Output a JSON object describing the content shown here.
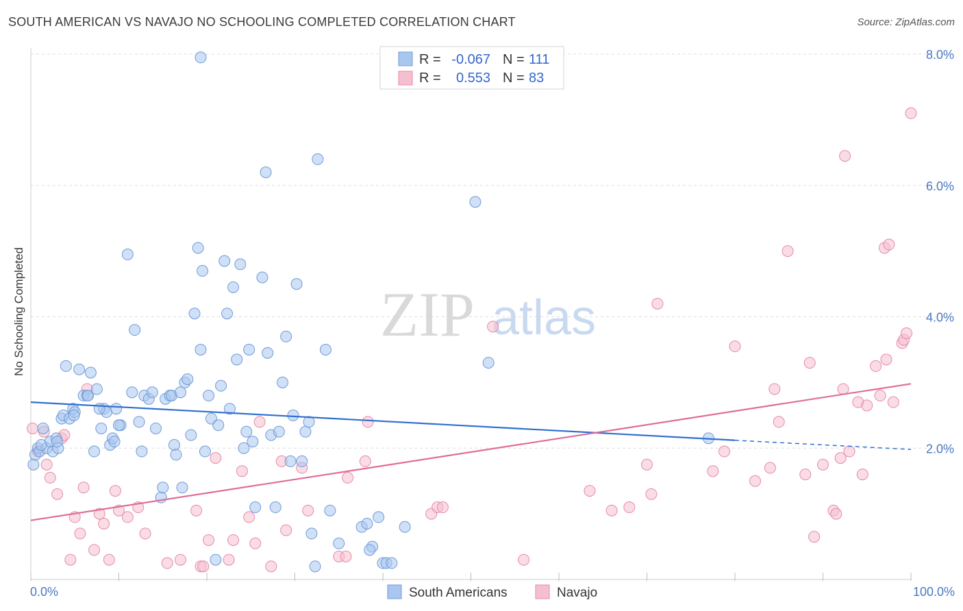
{
  "title": "SOUTH AMERICAN VS NAVAJO NO SCHOOLING COMPLETED CORRELATION CHART",
  "source": "Source: ZipAtlas.com",
  "watermark": {
    "zip": "ZIP",
    "atlas": "atlas"
  },
  "colors": {
    "blue_fill": "#a9c6ef",
    "blue_stroke": "#6f9bd8",
    "blue_line": "#2f6fd0",
    "pink_fill": "#f6bfd0",
    "pink_stroke": "#e58aa8",
    "pink_line": "#e06c98",
    "axis_text": "#4a78c2",
    "grid": "#dddddd"
  },
  "legend": {
    "rows": [
      {
        "r_label": "R =",
        "r_value": "-0.067",
        "n_label": "N =",
        "n_value": "111"
      },
      {
        "r_label": "R =",
        "r_value": "0.553",
        "n_label": "N =",
        "n_value": "83"
      }
    ],
    "bottom": [
      "South Americans",
      "Navajo"
    ]
  },
  "chart_data": {
    "type": "scatter",
    "ylabel": "No Schooling Completed",
    "xlim": [
      0,
      100
    ],
    "ylim": [
      0,
      8.3
    ],
    "y_ticks": [
      {
        "v": 2,
        "label": "2.0%"
      },
      {
        "v": 4,
        "label": "4.0%"
      },
      {
        "v": 6,
        "label": "6.0%"
      },
      {
        "v": 8,
        "label": "8.0%"
      }
    ],
    "x_tick_labels": [
      {
        "v": 0,
        "label": "0.0%"
      },
      {
        "v": 100,
        "label": "100.0%"
      }
    ],
    "series": [
      {
        "name": "South Americans",
        "trend": {
          "x0": 0,
          "y0": 2.7,
          "x1": 80,
          "y1": 2.12,
          "dash_to_x": 100,
          "dash_to_y": 1.98
        },
        "points": [
          [
            0.3,
            1.75
          ],
          [
            0.5,
            1.9
          ],
          [
            0.8,
            2.0
          ],
          [
            1.0,
            1.95
          ],
          [
            1.4,
            2.3
          ],
          [
            1.8,
            2.0
          ],
          [
            2.2,
            2.1
          ],
          [
            2.5,
            1.95
          ],
          [
            2.9,
            2.15
          ],
          [
            3.1,
            2.0
          ],
          [
            3.5,
            2.45
          ],
          [
            3.7,
            2.5
          ],
          [
            4.0,
            3.25
          ],
          [
            4.4,
            2.45
          ],
          [
            4.8,
            2.6
          ],
          [
            5.0,
            2.55
          ],
          [
            5.5,
            3.2
          ],
          [
            6.0,
            2.8
          ],
          [
            6.4,
            2.8
          ],
          [
            6.8,
            3.15
          ],
          [
            7.2,
            1.95
          ],
          [
            7.5,
            2.9
          ],
          [
            8.0,
            2.3
          ],
          [
            8.3,
            2.6
          ],
          [
            8.6,
            2.55
          ],
          [
            9.0,
            2.05
          ],
          [
            9.3,
            2.15
          ],
          [
            9.7,
            2.6
          ],
          [
            10.2,
            2.35
          ],
          [
            11.0,
            4.95
          ],
          [
            11.5,
            2.85
          ],
          [
            11.8,
            3.8
          ],
          [
            12.3,
            2.4
          ],
          [
            12.6,
            1.95
          ],
          [
            12.9,
            2.8
          ],
          [
            13.4,
            2.75
          ],
          [
            13.8,
            2.85
          ],
          [
            14.2,
            2.3
          ],
          [
            14.8,
            1.25
          ],
          [
            15.0,
            1.4
          ],
          [
            15.3,
            2.75
          ],
          [
            15.8,
            2.8
          ],
          [
            16.0,
            2.8
          ],
          [
            16.3,
            2.05
          ],
          [
            16.5,
            1.9
          ],
          [
            17.0,
            2.85
          ],
          [
            17.2,
            1.4
          ],
          [
            17.5,
            3.0
          ],
          [
            17.8,
            3.05
          ],
          [
            18.2,
            2.2
          ],
          [
            18.6,
            4.05
          ],
          [
            19.0,
            5.05
          ],
          [
            19.3,
            3.5
          ],
          [
            19.5,
            4.7
          ],
          [
            19.3,
            7.95
          ],
          [
            19.8,
            1.95
          ],
          [
            20.2,
            2.8
          ],
          [
            20.5,
            2.45
          ],
          [
            21.0,
            0.3
          ],
          [
            21.3,
            2.35
          ],
          [
            21.6,
            2.95
          ],
          [
            22.0,
            4.85
          ],
          [
            22.3,
            4.05
          ],
          [
            22.6,
            2.6
          ],
          [
            23.0,
            4.45
          ],
          [
            23.4,
            3.35
          ],
          [
            23.8,
            4.8
          ],
          [
            24.2,
            2.0
          ],
          [
            24.5,
            2.25
          ],
          [
            24.8,
            3.5
          ],
          [
            25.2,
            2.1
          ],
          [
            25.5,
            1.1
          ],
          [
            26.3,
            4.6
          ],
          [
            26.7,
            6.2
          ],
          [
            26.9,
            3.45
          ],
          [
            27.3,
            2.2
          ],
          [
            27.8,
            1.1
          ],
          [
            28.2,
            2.25
          ],
          [
            28.6,
            3.0
          ],
          [
            29.0,
            3.7
          ],
          [
            29.5,
            1.8
          ],
          [
            29.8,
            2.5
          ],
          [
            30.2,
            4.5
          ],
          [
            30.8,
            1.8
          ],
          [
            31.2,
            2.25
          ],
          [
            31.6,
            2.4
          ],
          [
            31.9,
            0.7
          ],
          [
            32.3,
            0.2
          ],
          [
            32.6,
            6.4
          ],
          [
            33.5,
            3.5
          ],
          [
            34.0,
            1.05
          ],
          [
            35.0,
            0.55
          ],
          [
            37.6,
            0.8
          ],
          [
            38.2,
            0.85
          ],
          [
            38.8,
            0.5
          ],
          [
            39.5,
            0.95
          ],
          [
            38.5,
            0.45
          ],
          [
            40.0,
            0.25
          ],
          [
            40.4,
            0.25
          ],
          [
            41.0,
            0.25
          ],
          [
            42.5,
            0.8
          ],
          [
            50.5,
            5.75
          ],
          [
            52.0,
            3.3
          ],
          [
            77.0,
            2.15
          ],
          [
            10.0,
            2.35
          ],
          [
            6.5,
            2.8
          ],
          [
            9.5,
            2.1
          ],
          [
            3.0,
            2.1
          ],
          [
            1.2,
            2.05
          ],
          [
            4.9,
            2.5
          ],
          [
            7.8,
            2.6
          ]
        ]
      },
      {
        "name": "Navajo",
        "trend": {
          "x0": 0,
          "y0": 0.9,
          "x1": 100,
          "y1": 2.98
        },
        "points": [
          [
            0.2,
            2.3
          ],
          [
            0.8,
            1.95
          ],
          [
            1.5,
            2.25
          ],
          [
            1.8,
            1.75
          ],
          [
            2.2,
            1.55
          ],
          [
            3.0,
            1.3
          ],
          [
            3.5,
            2.15
          ],
          [
            3.8,
            2.2
          ],
          [
            4.5,
            0.3
          ],
          [
            5.0,
            0.95
          ],
          [
            5.6,
            0.7
          ],
          [
            6.0,
            1.4
          ],
          [
            6.4,
            2.9
          ],
          [
            7.2,
            0.45
          ],
          [
            7.8,
            1.0
          ],
          [
            8.3,
            0.85
          ],
          [
            8.9,
            0.3
          ],
          [
            9.6,
            1.35
          ],
          [
            10.0,
            1.05
          ],
          [
            11.0,
            0.95
          ],
          [
            12.2,
            1.1
          ],
          [
            13.0,
            0.7
          ],
          [
            15.5,
            0.25
          ],
          [
            17.0,
            0.3
          ],
          [
            18.8,
            1.05
          ],
          [
            19.3,
            0.2
          ],
          [
            19.6,
            0.2
          ],
          [
            20.2,
            0.6
          ],
          [
            21.0,
            1.85
          ],
          [
            22.5,
            0.3
          ],
          [
            23.0,
            0.6
          ],
          [
            24.0,
            1.65
          ],
          [
            24.8,
            0.95
          ],
          [
            25.5,
            0.55
          ],
          [
            26.0,
            2.4
          ],
          [
            27.3,
            0.2
          ],
          [
            28.5,
            1.8
          ],
          [
            29.0,
            0.75
          ],
          [
            30.8,
            1.7
          ],
          [
            31.5,
            1.05
          ],
          [
            35.0,
            0.35
          ],
          [
            35.8,
            0.35
          ],
          [
            36.0,
            1.55
          ],
          [
            38.3,
            2.4
          ],
          [
            38.0,
            1.8
          ],
          [
            45.5,
            1.0
          ],
          [
            46.2,
            1.1
          ],
          [
            46.8,
            1.1
          ],
          [
            52.5,
            3.85
          ],
          [
            56.0,
            0.3
          ],
          [
            63.5,
            1.35
          ],
          [
            66.0,
            1.05
          ],
          [
            68.0,
            1.1
          ],
          [
            70.0,
            1.75
          ],
          [
            70.5,
            1.3
          ],
          [
            71.2,
            4.2
          ],
          [
            77.5,
            1.65
          ],
          [
            78.8,
            1.95
          ],
          [
            80.0,
            3.55
          ],
          [
            82.3,
            1.5
          ],
          [
            84.0,
            1.7
          ],
          [
            84.5,
            2.9
          ],
          [
            85.0,
            2.4
          ],
          [
            86.0,
            5.0
          ],
          [
            88.0,
            1.6
          ],
          [
            88.5,
            3.3
          ],
          [
            89.0,
            0.65
          ],
          [
            90.0,
            1.75
          ],
          [
            91.2,
            1.05
          ],
          [
            91.5,
            1.0
          ],
          [
            92.0,
            1.85
          ],
          [
            92.3,
            2.9
          ],
          [
            92.5,
            6.45
          ],
          [
            93.0,
            1.95
          ],
          [
            94.0,
            2.7
          ],
          [
            94.5,
            1.6
          ],
          [
            95.0,
            2.65
          ],
          [
            96.0,
            3.25
          ],
          [
            96.5,
            2.8
          ],
          [
            97.0,
            5.05
          ],
          [
            97.2,
            3.35
          ],
          [
            97.5,
            5.1
          ],
          [
            98.0,
            2.7
          ]
        ]
      }
    ],
    "extra_navajo_points": [
      [
        99.0,
        3.6
      ],
      [
        99.2,
        3.65
      ],
      [
        99.5,
        3.75
      ],
      [
        100.0,
        7.1
      ]
    ]
  }
}
